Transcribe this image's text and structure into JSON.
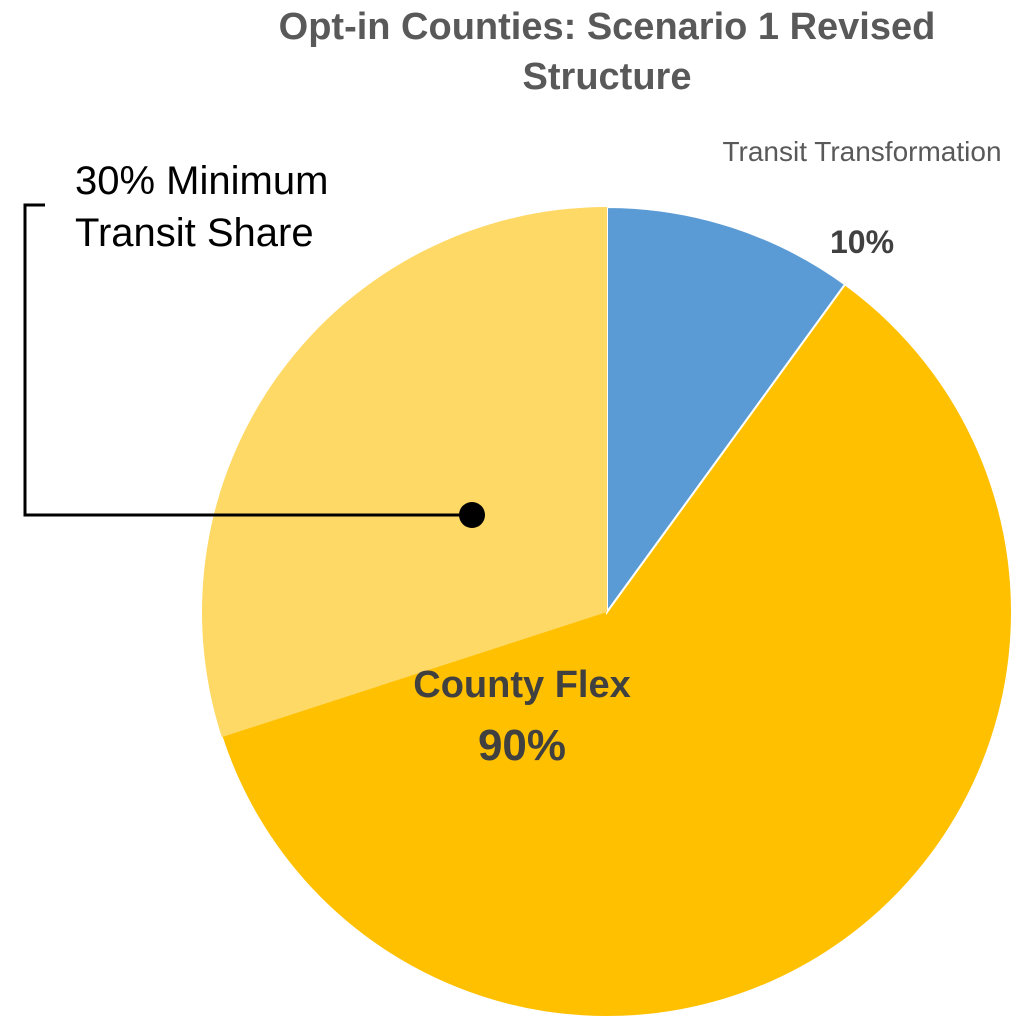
{
  "chart_data": {
    "type": "pie",
    "title": "Opt-in Counties: Scenario 1 Revised Structure",
    "categories": [
      "Transit Transformation",
      "County Flex"
    ],
    "values": [
      10,
      90
    ],
    "value_labels": [
      "10%",
      "90%"
    ],
    "colors": [
      "#5b9bd5",
      "#ffc000"
    ],
    "sub_slice": {
      "parent": 1,
      "value": 30,
      "label": "30% Minimum Transit Share",
      "color": "#ffd966"
    }
  }
}
